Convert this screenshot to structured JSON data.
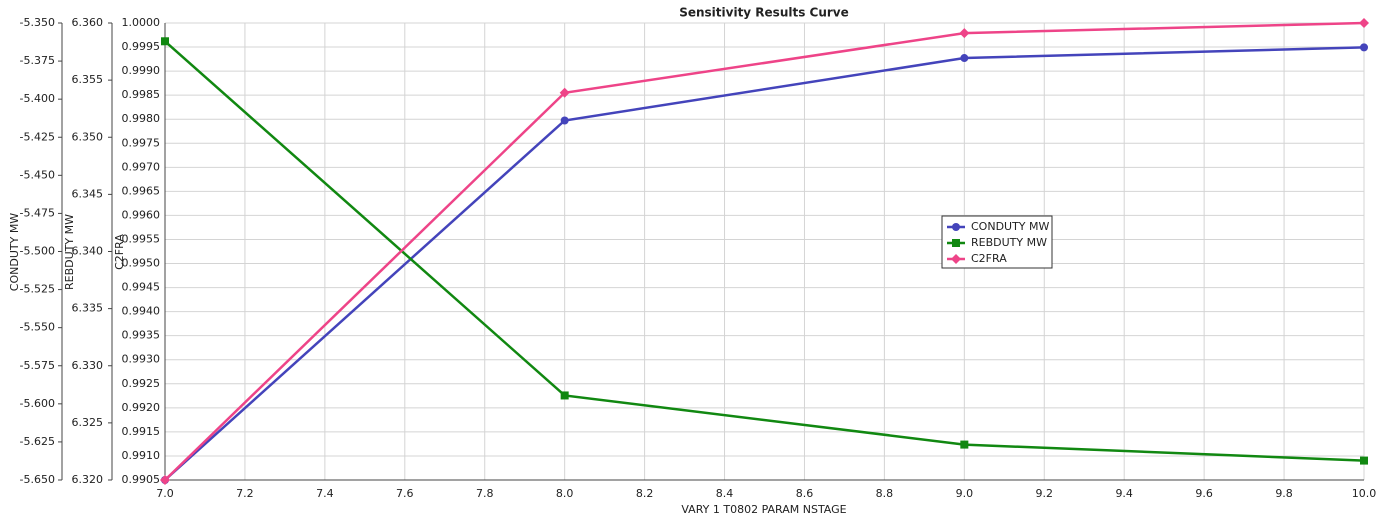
{
  "chart_data": {
    "type": "line",
    "title": "Sensitivity Results Curve",
    "x_label": "VARY   1 T0802 PARAM NSTAGE",
    "y_label": "CONDUTY MW",
    "y2_label": "REBDUTY MW",
    "y3_label": "C2FRA",
    "x": [
      7,
      8,
      9,
      10
    ],
    "xlim": [
      7,
      10
    ],
    "xticks": [
      {
        "value": 7,
        "label": "7.0"
      },
      7.2,
      7.4,
      7.6,
      7.8,
      {
        "value": 8,
        "label": "8.0"
      },
      8.2,
      8.4,
      8.6,
      8.8,
      {
        "value": 9,
        "label": "9.0"
      },
      9.2,
      9.4,
      9.6,
      9.8,
      {
        "value": 10,
        "label": "10.0"
      }
    ],
    "ylim": [
      -5.65,
      -5.35
    ],
    "yticks": [
      {
        "value": -5.65,
        "label": "-5.650"
      },
      -5.625,
      {
        "value": -5.6,
        "label": "-5.600"
      },
      -5.575,
      {
        "value": -5.55,
        "label": "-5.550"
      },
      -5.525,
      {
        "value": -5.5,
        "label": "-5.500"
      },
      -5.475,
      {
        "value": -5.45,
        "label": "-5.450"
      },
      -5.425,
      {
        "value": -5.4,
        "label": "-5.400"
      },
      -5.375,
      {
        "value": -5.35,
        "label": "-5.350"
      }
    ],
    "y2lim": [
      6.32,
      6.36
    ],
    "y2ticks": [
      {
        "value": 6.32,
        "label": "6.320"
      },
      6.325,
      {
        "value": 6.33,
        "label": "6.330"
      },
      6.335,
      {
        "value": 6.34,
        "label": "6.340"
      },
      6.345,
      {
        "value": 6.35,
        "label": "6.350"
      },
      6.355,
      {
        "value": 6.36,
        "label": "6.360"
      }
    ],
    "y3lim": [
      0.9905,
      1.0
    ],
    "y3ticks": [
      0.9905,
      {
        "value": 0.991,
        "label": "0.9910"
      },
      0.9915,
      {
        "value": 0.992,
        "label": "0.9920"
      },
      0.9925,
      {
        "value": 0.993,
        "label": "0.9930"
      },
      0.9935,
      {
        "value": 0.994,
        "label": "0.9940"
      },
      0.9945,
      {
        "value": 0.995,
        "label": "0.9950"
      },
      0.9955,
      {
        "value": 0.996,
        "label": "0.9960"
      },
      0.9965,
      {
        "value": 0.997,
        "label": "0.9970"
      },
      0.9975,
      {
        "value": 0.998,
        "label": "0.9980"
      },
      0.9985,
      {
        "value": 0.999,
        "label": "0.9990"
      },
      0.9995,
      {
        "value": 1.0,
        "label": "1.0000"
      }
    ],
    "grid": true,
    "series": [
      {
        "name": "CONDUTY MW",
        "color": "#4444bb",
        "axis": "y",
        "values": [
          -5.65,
          -5.414,
          -5.373,
          -5.366
        ]
      },
      {
        "name": "REBDUTY MW",
        "color": "#118811",
        "axis": "y2",
        "values": [
          6.3584,
          6.3274,
          6.3231,
          6.3217
        ]
      },
      {
        "name": "C2FRA",
        "color": "#ee4488",
        "axis": "y3",
        "values": [
          0.9905,
          0.99855,
          0.99979,
          1.0
        ]
      }
    ]
  }
}
